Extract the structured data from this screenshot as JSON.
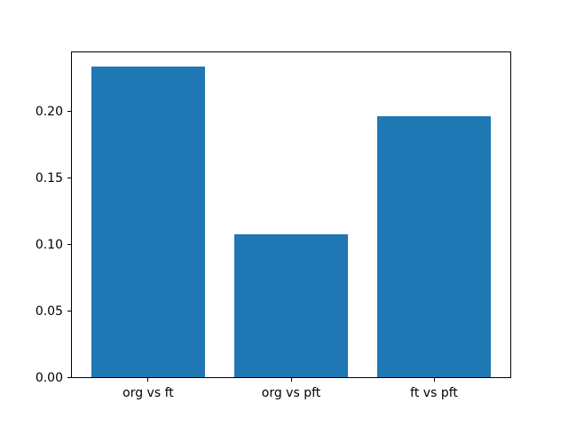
{
  "chart_data": {
    "type": "bar",
    "title": "",
    "xlabel": "",
    "ylabel": "",
    "categories": [
      "org vs ft",
      "org vs pft",
      "ft vs pft"
    ],
    "values": [
      0.234,
      0.108,
      0.197
    ],
    "bar_color": "#1f77b4",
    "ylim": [
      0,
      0.245
    ],
    "ytick_values": [
      0.0,
      0.05,
      0.1,
      0.15,
      0.2
    ],
    "ytick_labels": [
      "0.00",
      "0.05",
      "0.10",
      "0.15",
      "0.20"
    ],
    "grid": false,
    "legend": null,
    "background_color": "#ffffff",
    "spine_color": "#000000",
    "tick_label_color": "#000000"
  }
}
